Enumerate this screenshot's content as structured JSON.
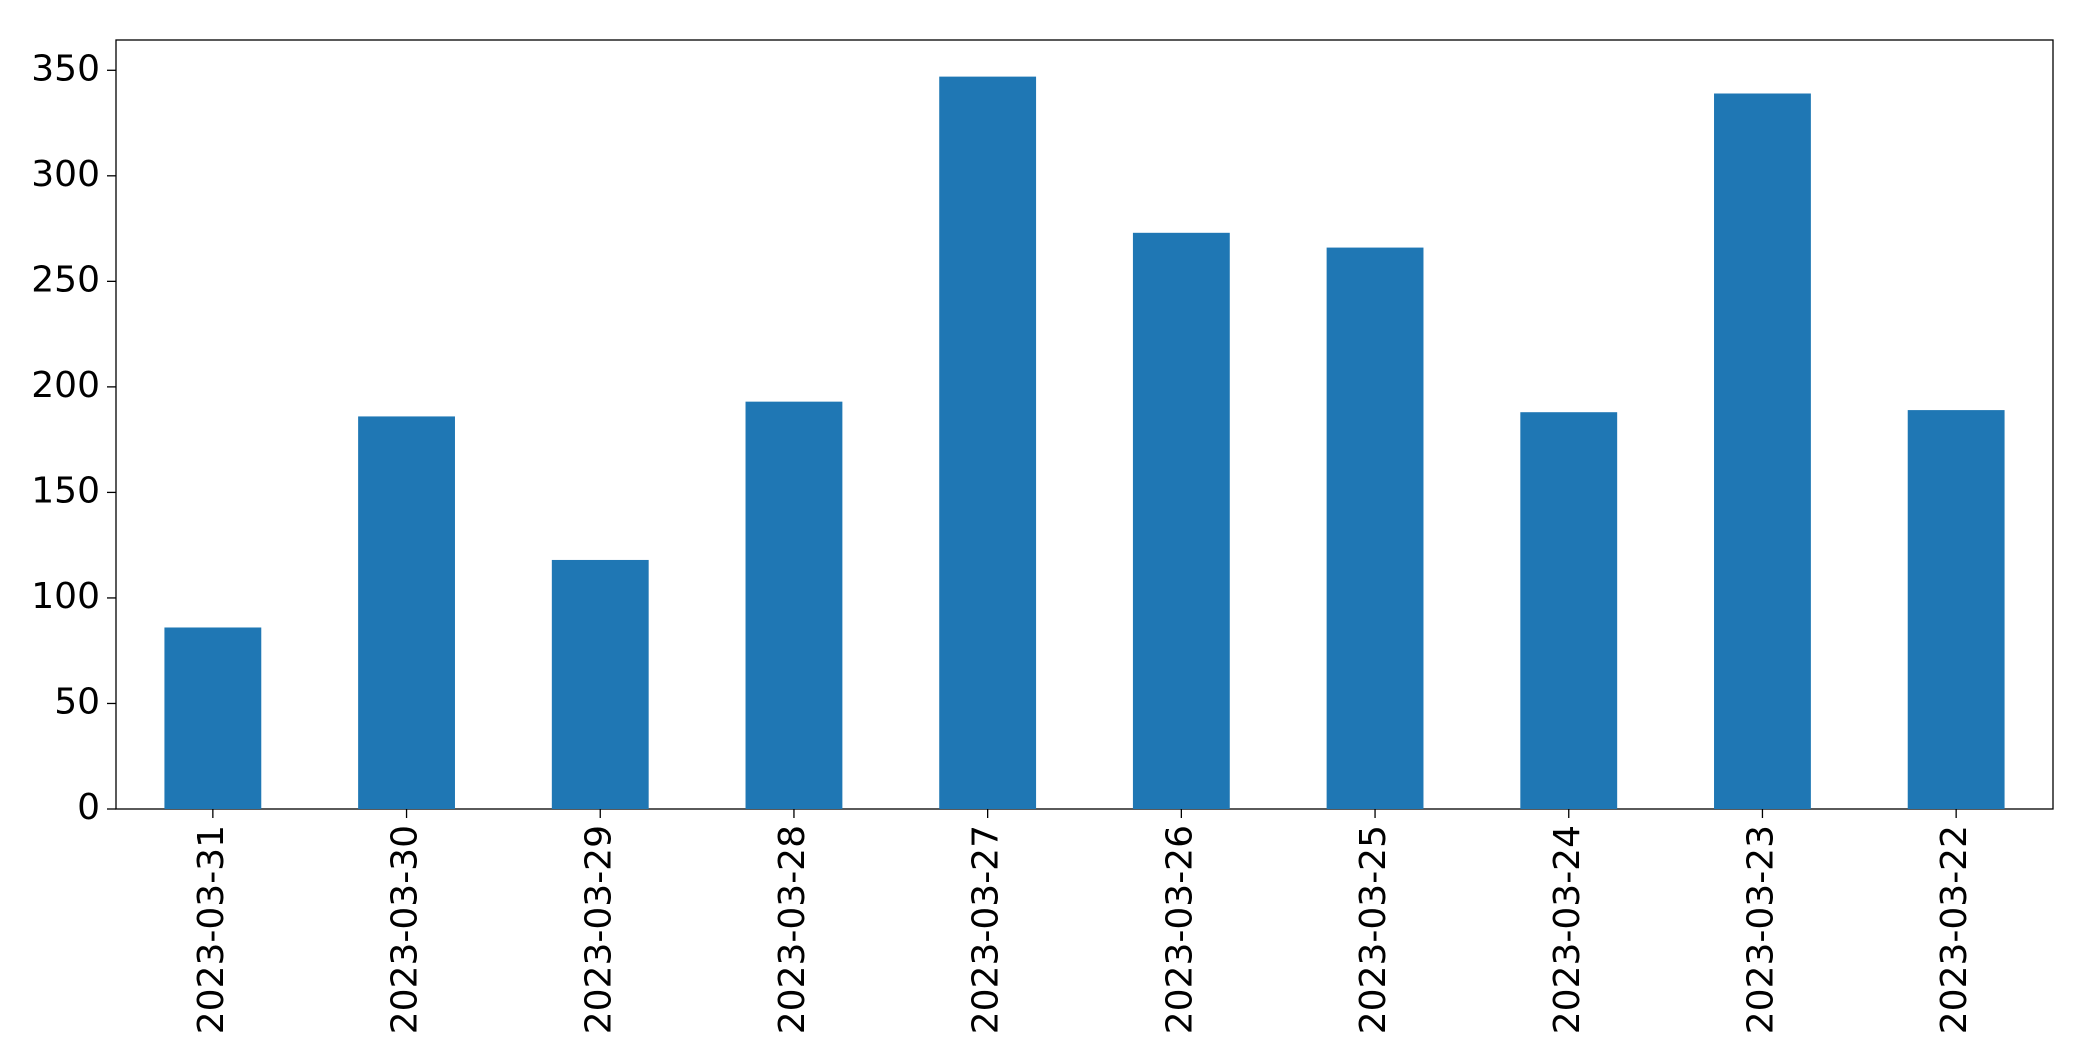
{
  "chart_data": {
    "type": "bar",
    "categories": [
      "2023-03-31",
      "2023-03-30",
      "2023-03-29",
      "2023-03-28",
      "2023-03-27",
      "2023-03-26",
      "2023-03-25",
      "2023-03-24",
      "2023-03-23",
      "2023-03-22"
    ],
    "values": [
      86,
      186,
      118,
      193,
      347,
      273,
      266,
      188,
      339,
      189
    ],
    "color": "#1f77b4",
    "ylim": [
      0,
      364.35
    ],
    "yticks": [
      0,
      50,
      100,
      150,
      200,
      250,
      300,
      350
    ],
    "grid": false
  }
}
